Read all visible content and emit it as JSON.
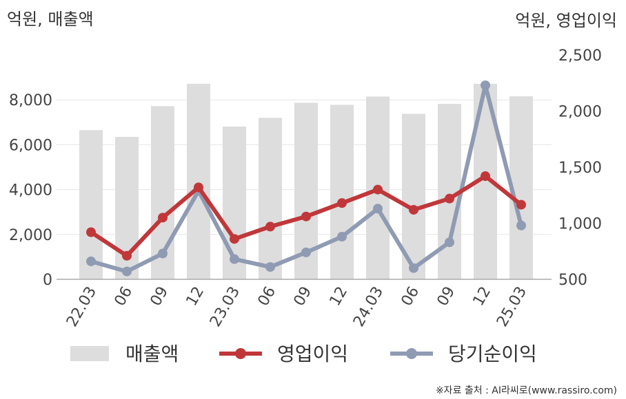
{
  "chart_data": {
    "type": "bar+line",
    "categories": [
      "22.03",
      "06",
      "09",
      "12",
      "23.03",
      "06",
      "09",
      "12",
      "24.03",
      "06",
      "09",
      "12",
      "25.03"
    ],
    "left_axis": {
      "unit": "억원, 매출액",
      "ticks": [
        0,
        2000,
        4000,
        6000,
        8000
      ],
      "tick_labels": [
        "0",
        "2,000",
        "4,000",
        "6,000",
        "8,000"
      ],
      "range": [
        0,
        10000
      ]
    },
    "right_axis": {
      "unit": "억원, 영업이익",
      "ticks": [
        500,
        1000,
        1500,
        2000,
        2500
      ],
      "tick_labels": [
        "500",
        "1,000",
        "1,500",
        "2,000",
        "2,500"
      ],
      "range": [
        500,
        2500
      ]
    },
    "grid": true,
    "legend_position": "bottom",
    "series": [
      {
        "name": "매출액",
        "type": "bar",
        "axis": "left",
        "color": "#dddddd",
        "values": [
          6650,
          6350,
          7720,
          8720,
          6810,
          7200,
          7870,
          7780,
          8150,
          7380,
          7820,
          8720,
          8160
        ]
      },
      {
        "name": "영업이익",
        "type": "line",
        "axis": "right",
        "color": "#c0373a",
        "values": [
          920,
          710,
          1050,
          1320,
          860,
          970,
          1060,
          1180,
          1300,
          1120,
          1220,
          1420,
          1165
        ]
      },
      {
        "name": "당기순이익",
        "type": "line",
        "axis": "right",
        "color": "#8f9bb3",
        "values": [
          660,
          570,
          730,
          1290,
          680,
          610,
          740,
          880,
          1130,
          600,
          830,
          2230,
          980
        ]
      }
    ],
    "source": "※자료 출처 : AI라씨로(www.rassiro.com)"
  }
}
